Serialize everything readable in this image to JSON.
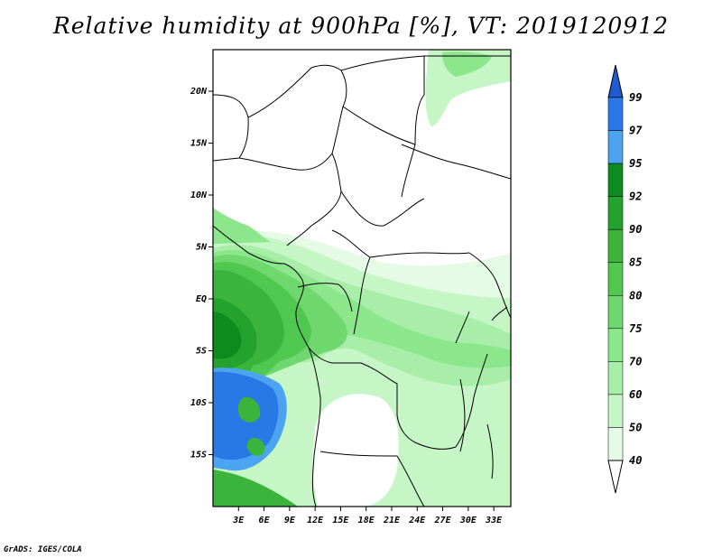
{
  "title": "Relative humidity at 900hPa [%], VT: 2019120912",
  "credit": "GrADS: IGES/COLA",
  "map": {
    "lon_range": [
      0,
      35
    ],
    "lat_range": [
      -20,
      24
    ],
    "lat_ticks": [
      {
        "value": 20,
        "label": "20N"
      },
      {
        "value": 15,
        "label": "15N"
      },
      {
        "value": 10,
        "label": "10N"
      },
      {
        "value": 5,
        "label": "5N"
      },
      {
        "value": 0,
        "label": "EQ"
      },
      {
        "value": -5,
        "label": "5S"
      },
      {
        "value": -10,
        "label": "10S"
      },
      {
        "value": -15,
        "label": "15S"
      }
    ],
    "lon_ticks": [
      {
        "value": 3,
        "label": "3E"
      },
      {
        "value": 6,
        "label": "6E"
      },
      {
        "value": 9,
        "label": "9E"
      },
      {
        "value": 12,
        "label": "12E"
      },
      {
        "value": 15,
        "label": "15E"
      },
      {
        "value": 18,
        "label": "18E"
      },
      {
        "value": 21,
        "label": "21E"
      },
      {
        "value": 24,
        "label": "24E"
      },
      {
        "value": 27,
        "label": "27E"
      },
      {
        "value": 30,
        "label": "30E"
      },
      {
        "value": 33,
        "label": "33E"
      }
    ]
  },
  "colorbar": {
    "levels": [
      "99",
      "97",
      "95",
      "92",
      "90",
      "85",
      "80",
      "75",
      "70",
      "60",
      "50",
      "40"
    ],
    "colors": [
      "#1e5ad2",
      "#2a78e6",
      "#4ca4f0",
      "#0c8c1e",
      "#23a22d",
      "#3cb43c",
      "#50c850",
      "#6ed76e",
      "#8ce68c",
      "#a8eea8",
      "#c6f5c6",
      "#e6fbe6"
    ],
    "top_arrow_color": "#1e5ad2",
    "bottom_arrow_color": "#ffffff"
  }
}
